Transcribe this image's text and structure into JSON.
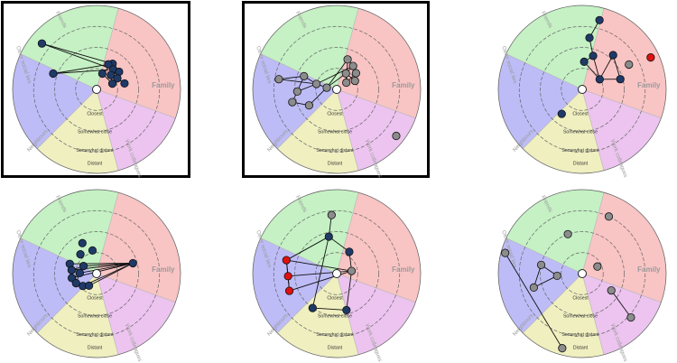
{
  "labels": {
    "sectors": [
      "Family",
      "Friends",
      "Other social ties",
      "Neighbours",
      "Work colleagues"
    ],
    "rings": [
      "Closest",
      "Somewhat close",
      "Somewhat distant",
      "Distant"
    ]
  },
  "colors": {
    "family": "#f9c4c4",
    "friends": "#c5f1c4",
    "other": "#bdbcf6",
    "neighbours": "#efefc0",
    "work": "#ecc4ef",
    "blue_node": "#1f3a68",
    "grey_node": "#8c8c8c",
    "red_node": "#e01010",
    "ego": "#ffffff",
    "sector_text": "#9a9a9a",
    "ring_text": "#333333"
  },
  "panels": [
    {
      "id": "panel-1",
      "highlighted": true,
      "nodes": [
        {
          "ang": 140,
          "r": 0.85,
          "c": "blue"
        },
        {
          "ang": 160,
          "r": 0.55,
          "c": "blue"
        },
        {
          "ang": 58,
          "r": 0.36,
          "c": "blue"
        },
        {
          "ang": 65,
          "r": 0.33,
          "c": "blue"
        },
        {
          "ang": 50,
          "r": 0.31,
          "c": "blue"
        },
        {
          "ang": 38,
          "r": 0.34,
          "c": "blue"
        },
        {
          "ang": 45,
          "r": 0.24,
          "c": "blue"
        },
        {
          "ang": 28,
          "r": 0.28,
          "c": "blue"
        },
        {
          "ang": 12,
          "r": 0.34,
          "c": "blue"
        },
        {
          "ang": 20,
          "r": 0.2,
          "c": "blue"
        },
        {
          "ang": 70,
          "r": 0.2,
          "c": "blue"
        }
      ],
      "edges": [
        [
          0,
          2
        ],
        [
          0,
          4
        ],
        [
          1,
          2
        ],
        [
          1,
          4
        ],
        [
          2,
          3
        ],
        [
          2,
          4
        ],
        [
          3,
          4
        ],
        [
          4,
          5
        ],
        [
          5,
          6
        ],
        [
          6,
          7
        ],
        [
          7,
          8
        ],
        [
          6,
          9
        ],
        [
          9,
          10
        ],
        [
          10,
          2
        ],
        [
          4,
          6
        ],
        [
          5,
          7
        ]
      ]
    },
    {
      "id": "panel-2",
      "highlighted": true,
      "nodes": [
        {
          "ang": 170,
          "r": 0.7,
          "c": "grey"
        },
        {
          "ang": 158,
          "r": 0.42,
          "c": "grey"
        },
        {
          "ang": 183,
          "r": 0.47,
          "c": "grey"
        },
        {
          "ang": 196,
          "r": 0.55,
          "c": "grey"
        },
        {
          "ang": 210,
          "r": 0.38,
          "c": "grey"
        },
        {
          "ang": 165,
          "r": 0.25,
          "c": "grey"
        },
        {
          "ang": 170,
          "r": 0.12,
          "c": "grey"
        },
        {
          "ang": 70,
          "r": 0.38,
          "c": "grey"
        },
        {
          "ang": 55,
          "r": 0.34,
          "c": "grey"
        },
        {
          "ang": 40,
          "r": 0.3,
          "c": "grey"
        },
        {
          "ang": 25,
          "r": 0.24,
          "c": "grey"
        },
        {
          "ang": 60,
          "r": 0.22,
          "c": "grey"
        },
        {
          "ang": 35,
          "r": 0.14,
          "c": "grey"
        },
        {
          "ang": 322,
          "r": 0.9,
          "c": "grey"
        }
      ],
      "edges": [
        [
          0,
          1
        ],
        [
          0,
          5
        ],
        [
          1,
          2
        ],
        [
          2,
          3
        ],
        [
          3,
          4
        ],
        [
          1,
          5
        ],
        [
          5,
          6
        ],
        [
          6,
          7
        ],
        [
          7,
          8
        ],
        [
          8,
          9
        ],
        [
          9,
          10
        ],
        [
          10,
          11
        ],
        [
          11,
          12
        ],
        [
          12,
          7
        ],
        [
          6,
          11
        ],
        [
          5,
          8
        ],
        [
          4,
          6
        ],
        [
          2,
          5
        ],
        [
          8,
          11
        ],
        [
          9,
          12
        ]
      ]
    },
    {
      "id": "panel-3",
      "highlighted": false,
      "nodes": [
        {
          "ang": 76,
          "r": 0.85,
          "c": "blue"
        },
        {
          "ang": 82,
          "r": 0.62,
          "c": "blue"
        },
        {
          "ang": 72,
          "r": 0.42,
          "c": "blue"
        },
        {
          "ang": 86,
          "r": 0.33,
          "c": "blue"
        },
        {
          "ang": 48,
          "r": 0.55,
          "c": "blue"
        },
        {
          "ang": 30,
          "r": 0.24,
          "c": "blue"
        },
        {
          "ang": 15,
          "r": 0.47,
          "c": "blue"
        },
        {
          "ang": 28,
          "r": 0.63,
          "c": "grey"
        },
        {
          "ang": 25,
          "r": 0.9,
          "c": "red"
        },
        {
          "ang": 230,
          "r": 0.38,
          "c": "blue"
        }
      ],
      "edges": [
        [
          0,
          1
        ],
        [
          1,
          2
        ],
        [
          2,
          3
        ],
        [
          3,
          5
        ],
        [
          5,
          4
        ],
        [
          4,
          6
        ],
        [
          5,
          6
        ],
        [
          2,
          5
        ]
      ]
    },
    {
      "id": "panel-4",
      "highlighted": false,
      "nodes": [
        {
          "ang": 115,
          "r": 0.4,
          "c": "blue"
        },
        {
          "ang": 100,
          "r": 0.28,
          "c": "blue"
        },
        {
          "ang": 130,
          "r": 0.3,
          "c": "blue"
        },
        {
          "ang": 16,
          "r": 0.45,
          "c": "blue"
        },
        {
          "ang": 160,
          "r": 0.34,
          "c": "blue"
        },
        {
          "ang": 172,
          "r": 0.3,
          "c": "blue"
        },
        {
          "ang": 190,
          "r": 0.3,
          "c": "blue"
        },
        {
          "ang": 205,
          "r": 0.27,
          "c": "blue"
        },
        {
          "ang": 222,
          "r": 0.22,
          "c": "blue"
        },
        {
          "ang": 238,
          "r": 0.17,
          "c": "blue"
        },
        {
          "ang": 178,
          "r": 0.2,
          "c": "blue"
        },
        {
          "ang": 150,
          "r": 0.18,
          "c": "blue"
        }
      ],
      "edges": [
        [
          3,
          4
        ],
        [
          3,
          5
        ],
        [
          3,
          6
        ],
        [
          3,
          10
        ],
        [
          4,
          5
        ],
        [
          5,
          6
        ],
        [
          6,
          7
        ],
        [
          7,
          8
        ],
        [
          8,
          9
        ],
        [
          4,
          10
        ],
        [
          10,
          11
        ],
        [
          11,
          3
        ],
        [
          5,
          11
        ],
        [
          6,
          10
        ],
        [
          7,
          10
        ],
        [
          9,
          3
        ],
        [
          8,
          3
        ]
      ]
    },
    {
      "id": "panel-5",
      "highlighted": false,
      "nodes": [
        {
          "ang": 95,
          "r": 0.7,
          "c": "grey"
        },
        {
          "ang": 102,
          "r": 0.45,
          "c": "blue"
        },
        {
          "ang": 60,
          "r": 0.3,
          "c": "blue"
        },
        {
          "ang": 10,
          "r": 0.18,
          "c": "grey"
        },
        {
          "ang": 165,
          "r": 0.62,
          "c": "red"
        },
        {
          "ang": 183,
          "r": 0.58,
          "c": "red"
        },
        {
          "ang": 200,
          "r": 0.6,
          "c": "red"
        },
        {
          "ang": 235,
          "r": 0.5,
          "c": "blue"
        },
        {
          "ang": 285,
          "r": 0.45,
          "c": "blue"
        }
      ],
      "edges": [
        [
          0,
          1
        ],
        [
          1,
          2
        ],
        [
          1,
          7
        ],
        [
          2,
          3
        ],
        [
          1,
          4
        ],
        [
          4,
          5
        ],
        [
          5,
          6
        ],
        [
          4,
          6
        ],
        [
          4,
          3
        ],
        [
          6,
          3
        ],
        [
          3,
          8
        ],
        [
          8,
          7
        ],
        [
          5,
          3
        ]
      ]
    },
    {
      "id": "panel-6",
      "highlighted": false,
      "nodes": [
        {
          "ang": 110,
          "r": 0.5,
          "c": "grey"
        },
        {
          "ang": 65,
          "r": 0.75,
          "c": "grey"
        },
        {
          "ang": 25,
          "r": 0.2,
          "c": "grey"
        },
        {
          "ang": 165,
          "r": 0.95,
          "c": "grey"
        },
        {
          "ang": 168,
          "r": 0.5,
          "c": "grey"
        },
        {
          "ang": 185,
          "r": 0.3,
          "c": "grey"
        },
        {
          "ang": 196,
          "r": 0.6,
          "c": "grey"
        },
        {
          "ang": 255,
          "r": 0.92,
          "c": "grey"
        },
        {
          "ang": 330,
          "r": 0.4,
          "c": "grey"
        },
        {
          "ang": 318,
          "r": 0.78,
          "c": "grey"
        }
      ],
      "edges": [
        [
          3,
          7
        ],
        [
          4,
          5
        ],
        [
          5,
          6
        ],
        [
          4,
          6
        ],
        [
          8,
          9
        ]
      ]
    }
  ]
}
